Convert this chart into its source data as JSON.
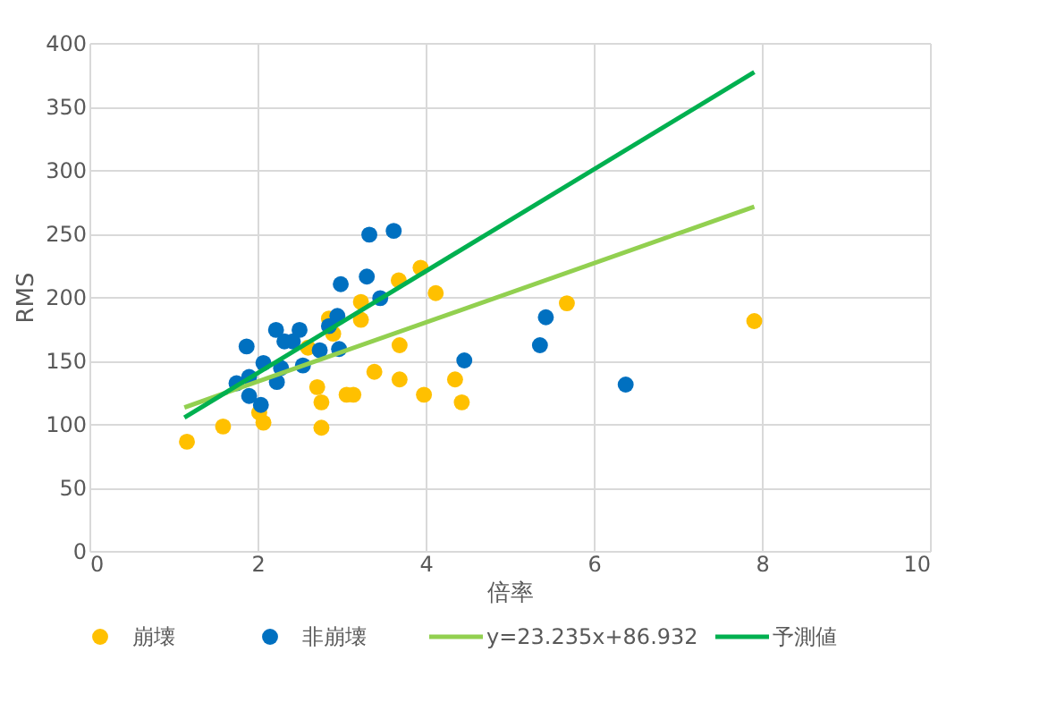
{
  "chart_data": {
    "type": "scatter",
    "xlabel": "倍率",
    "ylabel": "RMS",
    "xlim": [
      0,
      10
    ],
    "xticks": [
      0,
      2,
      4,
      6,
      8,
      10
    ],
    "ylim": [
      0,
      400
    ],
    "yticks": [
      0,
      50,
      100,
      150,
      200,
      250,
      300,
      350,
      400
    ],
    "grid": true,
    "legend": "bottom",
    "series": [
      {
        "name": "崩壊",
        "color": "#ffc000",
        "marker": "circle",
        "x": [
          1.16,
          1.59,
          2.02,
          2.07,
          2.71,
          2.76,
          2.76,
          3.06,
          3.14,
          2.9,
          2.85,
          3.23,
          3.23,
          3.68,
          3.94,
          4.12,
          3.69,
          3.39,
          3.69,
          3.98,
          4.35,
          4.43,
          2.6,
          5.68,
          7.91
        ],
        "values": [
          86,
          98,
          109,
          101,
          129,
          117,
          97,
          123,
          123,
          171,
          183,
          196,
          182,
          213,
          223,
          203,
          162,
          141,
          135,
          123,
          135,
          117,
          160,
          195,
          181
        ]
      },
      {
        "name": "非崩壊",
        "color": "#0070c0",
        "marker": "circle",
        "x": [
          1.87,
          1.75,
          1.9,
          1.9,
          2.04,
          2.07,
          2.23,
          2.22,
          2.28,
          2.32,
          2.5,
          2.42,
          2.54,
          2.74,
          2.85,
          2.95,
          2.97,
          2.99,
          3.3,
          3.33,
          3.62,
          3.46,
          4.46,
          5.36,
          5.43,
          6.38
        ],
        "values": [
          161,
          132,
          137,
          122,
          115,
          148,
          133,
          174,
          144,
          165,
          174,
          165,
          146,
          158,
          177,
          185,
          159,
          210,
          216,
          249,
          252,
          199,
          150,
          162,
          184,
          131
        ]
      },
      {
        "name": "y=23.235x+86.932",
        "color": "#92d050",
        "type": "line",
        "line_style": "solid",
        "x": [
          1.13,
          7.91
        ],
        "values": [
          113,
          271
        ]
      },
      {
        "name": "予測値",
        "color": "#00b050",
        "type": "line",
        "line_style": "solid",
        "x": [
          1.13,
          7.91
        ],
        "values": [
          105,
          377
        ]
      }
    ]
  }
}
